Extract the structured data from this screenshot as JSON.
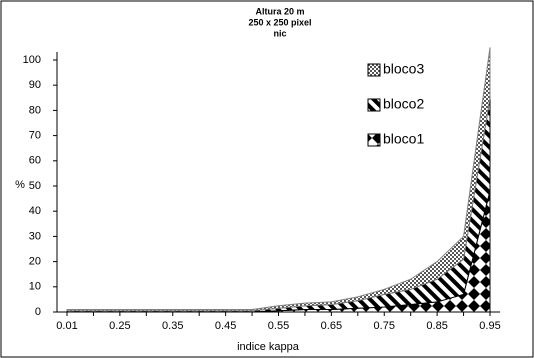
{
  "chart_data": {
    "type": "stacked-area",
    "title": [
      "Altura 20 m",
      "250 x 250 pixel",
      "nic"
    ],
    "x_label": "indice kappa",
    "y_label": "%",
    "categories": [
      "0.01",
      null,
      "0.25",
      null,
      "0.35",
      null,
      "0.45",
      null,
      "0.55",
      null,
      "0.65",
      null,
      "0.75",
      null,
      "0.85",
      null,
      "0.95"
    ],
    "series": [
      {
        "name": "bloco1",
        "color": "#000000",
        "pattern": "diamonds",
        "values": [
          0,
          0,
          0,
          0,
          0,
          0,
          0,
          0,
          0.5,
          1,
          1,
          1.5,
          2,
          3,
          4,
          7,
          48
        ]
      },
      {
        "name": "bloco2",
        "color": "#000000",
        "pattern": "stripes",
        "values": [
          0.5,
          0.5,
          0.5,
          0.5,
          0.5,
          0.5,
          0.5,
          0.5,
          1,
          1.5,
          2,
          3,
          5,
          6,
          9,
          14,
          37
        ]
      },
      {
        "name": "bloco3",
        "color": "#808080",
        "pattern": "dots",
        "values": [
          0.5,
          0.5,
          0.5,
          0.5,
          0.5,
          0.5,
          0.5,
          0.5,
          1,
          1,
          1,
          1.5,
          2,
          4,
          7,
          9,
          20
        ]
      }
    ],
    "ylim": [
      0,
      100
    ],
    "yticks": [
      0,
      10,
      20,
      30,
      40,
      50,
      60,
      70,
      80,
      90,
      100
    ],
    "legend": "upper-right",
    "legend_order": "reversed"
  }
}
